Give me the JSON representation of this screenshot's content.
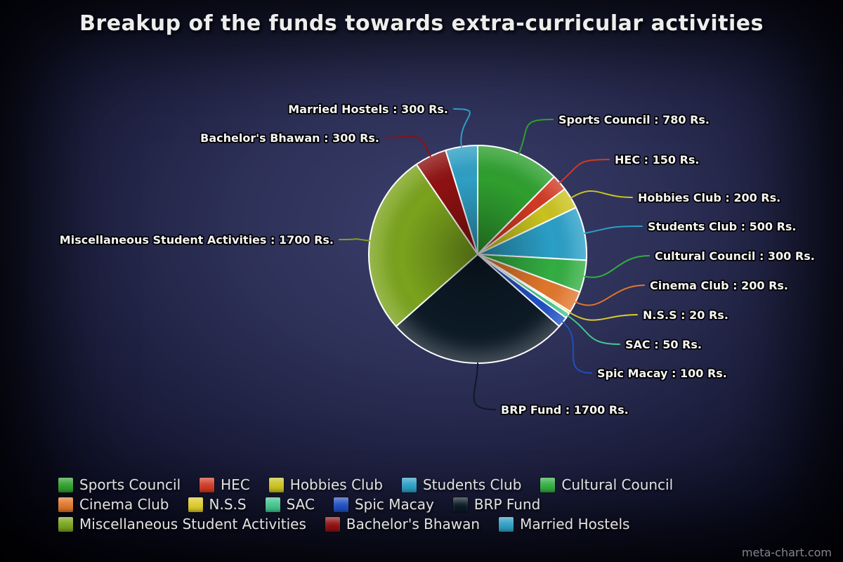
{
  "watermark": "meta-chart.com",
  "chart_data": {
    "type": "pie",
    "title": "Breakup of the funds towards extra-curricular activities",
    "unit": "Rs.",
    "legend_position": "bottom",
    "label_format": "{label} : {value} Rs.",
    "slices": [
      {
        "label": "Sports Council",
        "value": 780,
        "color": "#2f9f2f"
      },
      {
        "label": "HEC",
        "value": 150,
        "color": "#d03a24"
      },
      {
        "label": "Hobbies Club",
        "value": 200,
        "color": "#c9c21f"
      },
      {
        "label": "Students Club",
        "value": 500,
        "color": "#2b9fc6"
      },
      {
        "label": "Cultural Council",
        "value": 300,
        "color": "#33ad42"
      },
      {
        "label": "Cinema Club",
        "value": 200,
        "color": "#e0762c"
      },
      {
        "label": "N.S.S",
        "value": 20,
        "color": "#ddca2d"
      },
      {
        "label": "SAC",
        "value": 50,
        "color": "#43c48e"
      },
      {
        "label": "Spic Macay",
        "value": 100,
        "color": "#1f4fc0"
      },
      {
        "label": "BRP Fund",
        "value": 1700,
        "color": "#0c1a26"
      },
      {
        "label": "Miscellaneous Student Activities",
        "value": 1700,
        "color": "#7ba31d"
      },
      {
        "label": "Bachelor's Bhawan",
        "value": 300,
        "color": "#8e1111"
      },
      {
        "label": "Married Hostels",
        "value": 300,
        "color": "#2f9fc4"
      }
    ]
  }
}
